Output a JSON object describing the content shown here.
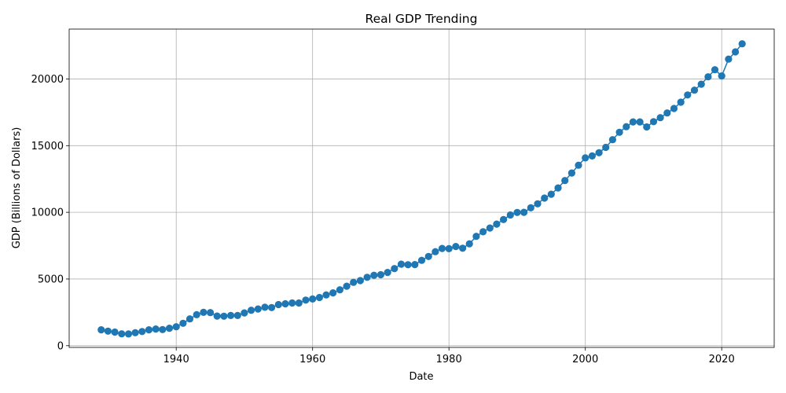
{
  "chart_data": {
    "type": "line",
    "title": "Real GDP Trending",
    "xlabel": "Date",
    "ylabel": "GDP (Billions of Dollars)",
    "xlim": [
      1924.3,
      2027.7
    ],
    "ylim": [
      -130,
      23740
    ],
    "xticks": [
      1940,
      1960,
      1980,
      2000,
      2020
    ],
    "yticks": [
      0,
      5000,
      10000,
      15000,
      20000
    ],
    "grid": true,
    "marker": "circle",
    "color": "#1f77b4",
    "series": [
      {
        "x": [
          1929,
          1930,
          1931,
          1932,
          1933,
          1934,
          1935,
          1936,
          1937,
          1938,
          1939,
          1940,
          1941,
          1942,
          1943,
          1944,
          1945,
          1946,
          1947,
          1948,
          1949,
          1950,
          1951,
          1952,
          1953,
          1954,
          1955,
          1956,
          1957,
          1958,
          1959,
          1960,
          1961,
          1962,
          1963,
          1964,
          1965,
          1966,
          1967,
          1968,
          1969,
          1970,
          1971,
          1972,
          1973,
          1974,
          1975,
          1976,
          1977,
          1978,
          1979,
          1980,
          1981,
          1982,
          1983,
          1984,
          1985,
          1986,
          1987,
          1988,
          1989,
          1990,
          1991,
          1992,
          1993,
          1994,
          1995,
          1996,
          1997,
          1998,
          1999,
          2000,
          2001,
          2002,
          2003,
          2004,
          2005,
          2006,
          2007,
          2008,
          2009,
          2010,
          2011,
          2012,
          2013,
          2014,
          2015,
          2016,
          2017,
          2018,
          2019,
          2020,
          2021,
          2022,
          2023
        ],
        "values": [
          1190,
          1090,
          1020,
          890,
          880,
          970,
          1060,
          1190,
          1250,
          1210,
          1310,
          1420,
          1680,
          2010,
          2320,
          2500,
          2480,
          2220,
          2210,
          2260,
          2260,
          2460,
          2660,
          2750,
          2880,
          2860,
          3080,
          3140,
          3200,
          3200,
          3420,
          3500,
          3610,
          3810,
          3960,
          4190,
          4460,
          4750,
          4880,
          5130,
          5280,
          5320,
          5490,
          5780,
          6110,
          6070,
          6080,
          6400,
          6690,
          7050,
          7290,
          7270,
          7440,
          7310,
          7640,
          8200,
          8540,
          8820,
          9120,
          9460,
          9800,
          9990,
          10000,
          10340,
          10640,
          11070,
          11360,
          11830,
          12380,
          12950,
          13530,
          14080,
          14230,
          14470,
          14870,
          15450,
          16000,
          16420,
          16780,
          16780,
          16400,
          16800,
          17100,
          17450,
          17790,
          18260,
          18800,
          19160,
          19610,
          20160,
          20690,
          20230,
          21490,
          22030,
          22640
        ]
      }
    ]
  }
}
